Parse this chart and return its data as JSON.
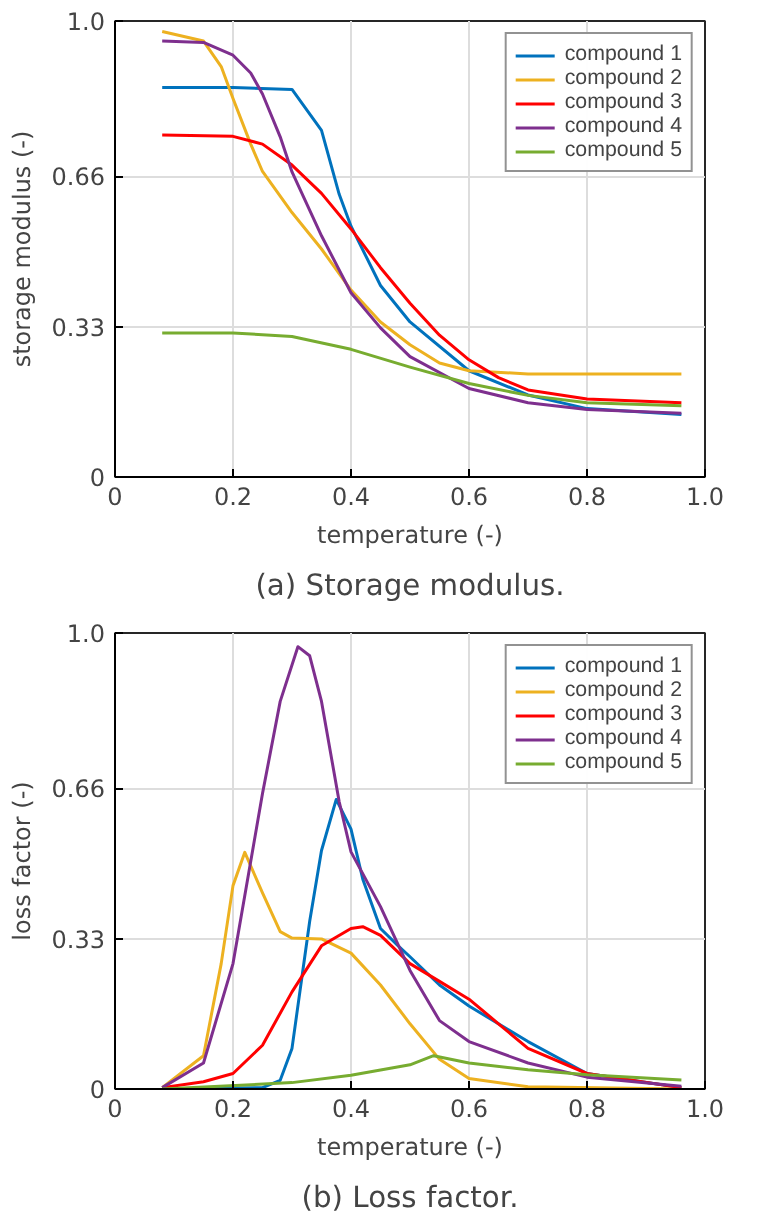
{
  "chart_data": [
    {
      "type": "line",
      "title": "(a) Storage modulus.",
      "xlabel": "temperature (-)",
      "ylabel": "storage modulus (-)",
      "xlim": [
        0,
        1
      ],
      "xticks": [
        0,
        0.2,
        0.4,
        0.6,
        0.8,
        {
          "value": 1,
          "label": "1.0"
        }
      ],
      "ylim": [
        0,
        1
      ],
      "yticks": [
        0,
        0.33,
        0.66,
        {
          "value": 1,
          "label": "1.0"
        }
      ],
      "grid": true,
      "legend": "top right",
      "line_style": "solid",
      "series": [
        {
          "name": "compound 1",
          "color": "#0072bd",
          "x": [
            0.08,
            0.2,
            0.3,
            0.35,
            0.38,
            0.4,
            0.45,
            0.5,
            0.6,
            0.7,
            0.8,
            0.96
          ],
          "values": [
            0.854,
            0.854,
            0.85,
            0.76,
            0.62,
            0.55,
            0.42,
            0.34,
            0.233,
            0.18,
            0.15,
            0.137
          ]
        },
        {
          "name": "compound 2",
          "color": "#edb120",
          "x": [
            0.08,
            0.15,
            0.18,
            0.2,
            0.23,
            0.25,
            0.3,
            0.35,
            0.4,
            0.45,
            0.5,
            0.55,
            0.6,
            0.7,
            0.96
          ],
          "values": [
            0.977,
            0.956,
            0.9,
            0.83,
            0.73,
            0.67,
            0.58,
            0.5,
            0.41,
            0.34,
            0.29,
            0.25,
            0.233,
            0.226,
            0.226
          ]
        },
        {
          "name": "compound 3",
          "color": "#ff0000",
          "x": [
            0.08,
            0.2,
            0.25,
            0.3,
            0.35,
            0.4,
            0.45,
            0.5,
            0.55,
            0.6,
            0.65,
            0.7,
            0.8,
            0.96
          ],
          "values": [
            0.75,
            0.747,
            0.73,
            0.684,
            0.622,
            0.544,
            0.459,
            0.381,
            0.311,
            0.257,
            0.218,
            0.191,
            0.171,
            0.163
          ]
        },
        {
          "name": "compound 4",
          "color": "#7e2f8e",
          "x": [
            0.08,
            0.15,
            0.2,
            0.23,
            0.25,
            0.28,
            0.3,
            0.35,
            0.4,
            0.45,
            0.5,
            0.6,
            0.7,
            0.8,
            0.96
          ],
          "values": [
            0.956,
            0.953,
            0.925,
            0.886,
            0.84,
            0.746,
            0.669,
            0.529,
            0.404,
            0.327,
            0.264,
            0.194,
            0.163,
            0.148,
            0.14
          ]
        },
        {
          "name": "compound 5",
          "color": "#77ac30",
          "x": [
            0.08,
            0.2,
            0.3,
            0.4,
            0.5,
            0.6,
            0.7,
            0.8,
            0.96
          ],
          "values": [
            0.316,
            0.316,
            0.308,
            0.28,
            0.241,
            0.205,
            0.179,
            0.163,
            0.156
          ]
        }
      ]
    },
    {
      "type": "line",
      "title": "(b) Loss factor.",
      "xlabel": "temperature (-)",
      "ylabel": "loss factor (-)",
      "xlim": [
        0,
        1
      ],
      "xticks": [
        0,
        0.2,
        0.4,
        0.6,
        0.8,
        {
          "value": 1,
          "label": "1.0"
        }
      ],
      "ylim": [
        0,
        1
      ],
      "yticks": [
        0,
        0.33,
        0.66,
        {
          "value": 1,
          "label": "1.0"
        }
      ],
      "grid": true,
      "legend": "top right",
      "line_style": "solid",
      "series": [
        {
          "name": "compound 1",
          "color": "#0072bd",
          "x": [
            0.08,
            0.25,
            0.28,
            0.3,
            0.33,
            0.35,
            0.375,
            0.4,
            0.42,
            0.45,
            0.48,
            0.5,
            0.55,
            0.6,
            0.7,
            0.8,
            0.96
          ],
          "values": [
            0,
            0.003,
            0.019,
            0.089,
            0.368,
            0.523,
            0.635,
            0.57,
            0.46,
            0.352,
            0.314,
            0.29,
            0.228,
            0.182,
            0.104,
            0.034,
            0.003
          ]
        },
        {
          "name": "compound 2",
          "color": "#edb120",
          "x": [
            0.08,
            0.15,
            0.18,
            0.2,
            0.22,
            0.25,
            0.28,
            0.3,
            0.35,
            0.4,
            0.45,
            0.5,
            0.55,
            0.6,
            0.7,
            0.96
          ],
          "values": [
            0.003,
            0.073,
            0.275,
            0.446,
            0.519,
            0.43,
            0.345,
            0.331,
            0.329,
            0.298,
            0.228,
            0.143,
            0.065,
            0.023,
            0.005,
            0
          ]
        },
        {
          "name": "compound 3",
          "color": "#ff0000",
          "x": [
            0.08,
            0.15,
            0.2,
            0.25,
            0.3,
            0.35,
            0.4,
            0.42,
            0.45,
            0.5,
            0.55,
            0.6,
            0.65,
            0.7,
            0.8,
            0.96
          ],
          "values": [
            0.003,
            0.016,
            0.034,
            0.096,
            0.213,
            0.314,
            0.352,
            0.356,
            0.337,
            0.275,
            0.236,
            0.197,
            0.143,
            0.089,
            0.034,
            0.003
          ]
        },
        {
          "name": "compound 4",
          "color": "#7e2f8e",
          "x": [
            0.08,
            0.15,
            0.2,
            0.25,
            0.28,
            0.31,
            0.33,
            0.35,
            0.38,
            0.4,
            0.45,
            0.5,
            0.55,
            0.6,
            0.7,
            0.8,
            0.96
          ],
          "values": [
            0.003,
            0.057,
            0.275,
            0.648,
            0.85,
            0.97,
            0.95,
            0.85,
            0.63,
            0.52,
            0.4,
            0.26,
            0.15,
            0.104,
            0.057,
            0.026,
            0.006
          ]
        },
        {
          "name": "compound 5",
          "color": "#77ac30",
          "x": [
            0.08,
            0.3,
            0.4,
            0.5,
            0.54,
            0.6,
            0.7,
            0.8,
            0.96
          ],
          "values": [
            0,
            0.014,
            0.03,
            0.053,
            0.073,
            0.057,
            0.042,
            0.031,
            0.02
          ]
        }
      ]
    }
  ]
}
